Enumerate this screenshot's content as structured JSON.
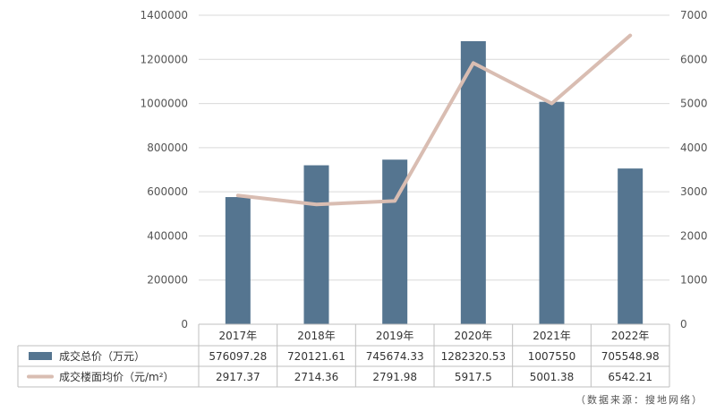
{
  "chart_data": {
    "type": "bar",
    "categories": [
      "2017年",
      "2018年",
      "2019年",
      "2020年",
      "2021年",
      "2022年"
    ],
    "y_left_ticks": [
      "0",
      "200000",
      "400000",
      "600000",
      "800000",
      "1000000",
      "1200000",
      "1400000"
    ],
    "y_right_ticks": [
      "0",
      "1000",
      "2000",
      "3000",
      "4000",
      "5000",
      "6000",
      "7000"
    ],
    "ylim_left": [
      0,
      1400000
    ],
    "ylim_right": [
      0,
      7000
    ],
    "grid": true,
    "series": [
      {
        "name": "成交总价（万元）",
        "type": "bar",
        "axis": "left",
        "color": "#557590",
        "values": [
          576097.28,
          720121.61,
          745674.33,
          1282320.53,
          1007550,
          705548.98
        ],
        "labels": [
          "576097.28",
          "720121.61",
          "745674.33",
          "1282320.53",
          "1007550",
          "705548.98"
        ]
      },
      {
        "name": "成交楼面均价（元/m²）",
        "type": "line",
        "axis": "right",
        "color": "#d9bdb2",
        "values": [
          2917.37,
          2714.36,
          2791.98,
          5917.5,
          5001.38,
          6542.21
        ],
        "labels": [
          "2917.37",
          "2714.36",
          "2791.98",
          "5917.5",
          "5001.38",
          "6542.21"
        ]
      }
    ]
  },
  "source_note": "（数据来源：搜地网络）"
}
